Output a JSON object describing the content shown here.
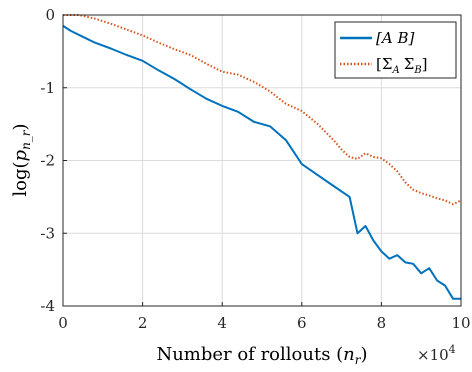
{
  "chart_data": {
    "type": "line",
    "xlabel": "Number of rollouts (n_r)",
    "xlabel_main": "Number of rollouts (",
    "xlabel_sub_var": "n",
    "xlabel_sub": "r",
    "xlabel_close": ")",
    "ylabel_fn": "log(",
    "ylabel_var": "p",
    "ylabel_sub": "n_r",
    "ylabel_close": ")",
    "x_multiplier_text": "×10",
    "x_multiplier_exp": "4",
    "xlim": [
      0,
      100000
    ],
    "ylim": [
      -4,
      0
    ],
    "xticks": [
      0,
      20000,
      40000,
      60000,
      80000,
      100000
    ],
    "xtick_labels": [
      "0",
      "2",
      "4",
      "6",
      "8",
      "10"
    ],
    "yticks": [
      0,
      -1,
      -2,
      -3,
      -4
    ],
    "ytick_labels": [
      "0",
      "-1",
      "-2",
      "-3",
      "-4"
    ],
    "grid": true,
    "legend_position": "top-right",
    "series": [
      {
        "name": "[A B]",
        "color": "#0072BD",
        "style": "solid",
        "x": [
          0,
          2000,
          5000,
          8000,
          12000,
          16000,
          20000,
          24000,
          28000,
          32000,
          36000,
          40000,
          44000,
          48000,
          52000,
          56000,
          60000,
          64000,
          68000,
          72000,
          74000,
          76000,
          78000,
          80000,
          82000,
          84000,
          86000,
          88000,
          90000,
          92000,
          94000,
          96000,
          98000,
          100000
        ],
        "y": [
          -0.15,
          -0.22,
          -0.3,
          -0.38,
          -0.46,
          -0.55,
          -0.63,
          -0.76,
          -0.88,
          -1.02,
          -1.15,
          -1.25,
          -1.33,
          -1.47,
          -1.53,
          -1.72,
          -2.05,
          -2.2,
          -2.35,
          -2.5,
          -3.0,
          -2.9,
          -3.1,
          -3.25,
          -3.35,
          -3.3,
          -3.4,
          -3.42,
          -3.55,
          -3.48,
          -3.65,
          -3.72,
          -3.9,
          -3.9
        ]
      },
      {
        "name": "[Σ'_A Σ'_B]",
        "color": "#D95319",
        "style": "dotted",
        "x": [
          0,
          4000,
          8000,
          12000,
          16000,
          20000,
          24000,
          28000,
          32000,
          36000,
          40000,
          44000,
          48000,
          52000,
          56000,
          60000,
          64000,
          68000,
          70000,
          72000,
          74000,
          76000,
          78000,
          80000,
          82000,
          84000,
          86000,
          88000,
          90000,
          92000,
          94000,
          96000,
          98000,
          100000
        ],
        "y": [
          0.0,
          0.0,
          -0.05,
          -0.12,
          -0.2,
          -0.28,
          -0.38,
          -0.47,
          -0.55,
          -0.67,
          -0.78,
          -0.82,
          -0.92,
          -1.05,
          -1.22,
          -1.32,
          -1.5,
          -1.72,
          -1.85,
          -1.95,
          -1.98,
          -1.9,
          -1.95,
          -1.97,
          -2.05,
          -2.15,
          -2.3,
          -2.4,
          -2.45,
          -2.48,
          -2.52,
          -2.55,
          -2.6,
          -2.55
        ]
      }
    ],
    "legend": {
      "entry1": "[A B]",
      "entry2_open": "[",
      "entry2_sym_a": "Σ",
      "entry2_sub_a": "A",
      "entry2_sym_b": "Σ",
      "entry2_sub_b": "B",
      "entry2_close": "]"
    }
  }
}
